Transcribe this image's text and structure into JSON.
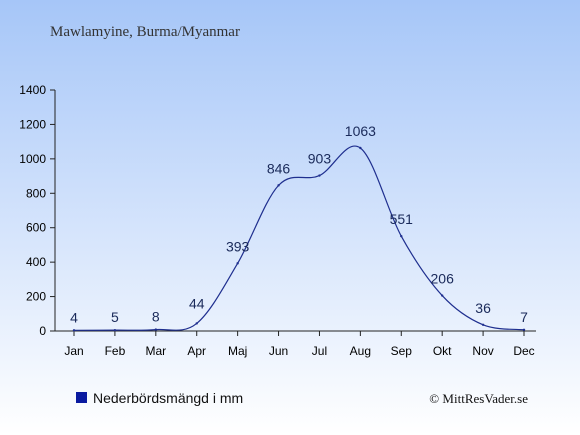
{
  "title": "Mawlamyine, Burma/Myanmar",
  "legend_label": "Nederbördsmängd i mm",
  "credit": "© MittResVader.se",
  "colors": {
    "line": "#1f2f8f",
    "legend_marker": "#0a1aa0",
    "bg_top": "#a6c6f8",
    "bg_bottom": "#ffffff",
    "label": "#1a2a5a"
  },
  "chart_data": {
    "type": "line",
    "categories": [
      "Jan",
      "Feb",
      "Mar",
      "Apr",
      "Maj",
      "Jun",
      "Jul",
      "Aug",
      "Sep",
      "Okt",
      "Nov",
      "Dec"
    ],
    "series": [
      {
        "name": "Nederbördsmängd i mm",
        "values": [
          4,
          5,
          8,
          44,
          393,
          846,
          903,
          1063,
          551,
          206,
          36,
          7
        ]
      }
    ],
    "data_labels": [
      "4",
      "5",
      "8",
      "44",
      "393",
      "846",
      "903",
      "1063",
      "551",
      "206",
      "36",
      "7"
    ],
    "ylim": [
      0,
      1400
    ],
    "yticks": [
      0,
      200,
      400,
      600,
      800,
      1000,
      1200,
      1400
    ],
    "ytick_labels": [
      "0",
      "200",
      "400",
      "600",
      "800",
      "1000",
      "1200",
      "1400"
    ],
    "grid": false,
    "legend_position": "bottom-left"
  }
}
